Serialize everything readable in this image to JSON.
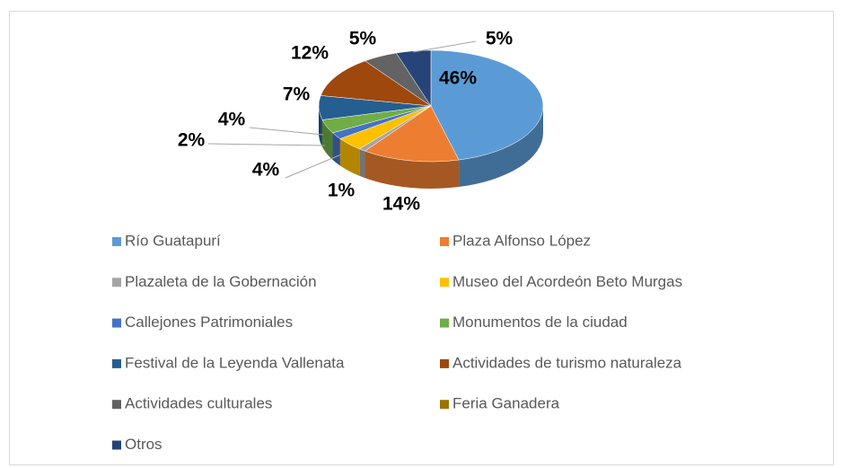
{
  "chart_data": {
    "type": "pie",
    "categories": [
      "Río Guatapurí",
      "Plaza Alfonso López",
      "Plazaleta de la Gobernación",
      "Museo del Acordeón Beto Murgas",
      "Callejones Patrimoniales",
      "Monumentos de la ciudad",
      "Festival de la Leyenda Vallenata",
      "Actividades de turismo naturaleza",
      "Actividades culturales",
      "Feria Ganadera",
      "Otros"
    ],
    "values": [
      46,
      14,
      1,
      4,
      2,
      4,
      7,
      12,
      5,
      0,
      5
    ],
    "value_labels": [
      "46%",
      "14%",
      "1%",
      "4%",
      "2%",
      "4%",
      "7%",
      "12%",
      "5%",
      null,
      "5%"
    ],
    "colors": [
      "#5b9bd5",
      "#ed7d31",
      "#a5a5a5",
      "#ffc000",
      "#4472c4",
      "#70ad47",
      "#255e91",
      "#9e480e",
      "#636363",
      "#997300",
      "#264478"
    ],
    "legend": "bottom"
  }
}
